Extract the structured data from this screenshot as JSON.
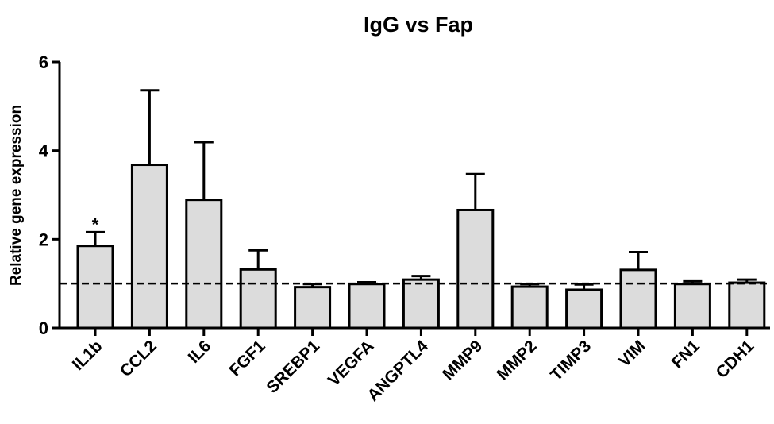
{
  "chart_data": {
    "type": "bar",
    "title": "IgG vs Fap",
    "ylabel": "Relative gene expression",
    "xlabel": "",
    "ylim": [
      0,
      6
    ],
    "yticks": [
      0,
      2,
      4,
      6
    ],
    "reference_line": 1,
    "categories": [
      "IL1b",
      "CCL2",
      "IL6",
      "FGF1",
      "SREBP1",
      "VEGFA",
      "ANGPTL4",
      "MMP9",
      "MMP2",
      "TIMP3",
      "VIM",
      "FN1",
      "CDH1"
    ],
    "values": [
      1.85,
      3.68,
      2.89,
      1.32,
      0.92,
      0.99,
      1.09,
      2.66,
      0.93,
      0.86,
      1.31,
      0.99,
      1.02
    ],
    "error_upper": [
      2.16,
      5.36,
      4.19,
      1.75,
      0.99,
      1.03,
      1.17,
      3.47,
      0.99,
      0.98,
      1.71,
      1.05,
      1.09
    ],
    "annotations": [
      {
        "category": "IL1b",
        "text": "*"
      }
    ],
    "colors": {
      "bar_fill": "#dcdcdc",
      "stroke": "#000000"
    }
  }
}
